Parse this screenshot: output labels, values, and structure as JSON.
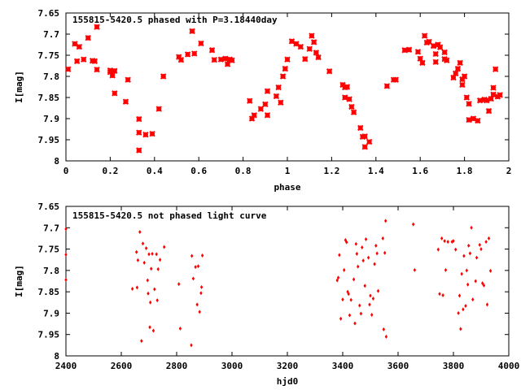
{
  "chart_data": [
    {
      "type": "scatter",
      "title": "155815-5420.5 phased with P=3.18440day",
      "xlabel": "phase",
      "ylabel": "I[mag]",
      "xlim": [
        0,
        2
      ],
      "ylim": [
        7.65,
        8.0
      ],
      "y_reversed": true,
      "xticks": [
        "0",
        "0.2",
        "0.4",
        "0.6",
        "0.8",
        "1",
        "1.2",
        "1.4",
        "1.6",
        "1.8",
        "2"
      ],
      "yticks": [
        "7.65",
        "7.7",
        "7.75",
        "7.8",
        "7.85",
        "7.9",
        "7.95",
        "8"
      ],
      "grid": false,
      "marker": "cross",
      "color": "#ff0000",
      "points": [
        [
          0.01,
          7.783
        ],
        [
          0.04,
          7.723
        ],
        [
          0.05,
          7.764
        ],
        [
          0.06,
          7.73
        ],
        [
          0.08,
          7.76
        ],
        [
          0.1,
          7.709
        ],
        [
          0.12,
          7.763
        ],
        [
          0.13,
          7.764
        ],
        [
          0.14,
          7.683
        ],
        [
          0.14,
          7.784
        ],
        [
          0.2,
          7.79
        ],
        [
          0.2,
          7.786
        ],
        [
          0.21,
          7.798
        ],
        [
          0.22,
          7.787
        ],
        [
          0.22,
          7.84
        ],
        [
          0.27,
          7.86
        ],
        [
          0.28,
          7.808
        ],
        [
          0.33,
          7.901
        ],
        [
          0.33,
          7.933
        ],
        [
          0.33,
          7.975
        ],
        [
          0.36,
          7.938
        ],
        [
          0.39,
          7.936
        ],
        [
          0.42,
          7.877
        ],
        [
          0.44,
          7.8
        ],
        [
          0.51,
          7.754
        ],
        [
          0.52,
          7.761
        ],
        [
          0.55,
          7.748
        ],
        [
          0.57,
          7.693
        ],
        [
          0.58,
          7.746
        ],
        [
          0.61,
          7.722
        ],
        [
          0.66,
          7.738
        ],
        [
          0.67,
          7.761
        ],
        [
          0.7,
          7.76
        ],
        [
          0.72,
          7.758
        ],
        [
          0.73,
          7.771
        ],
        [
          0.74,
          7.76
        ],
        [
          0.75,
          7.762
        ],
        [
          0.83,
          7.858
        ],
        [
          0.84,
          7.9
        ],
        [
          0.85,
          7.892
        ],
        [
          0.88,
          7.877
        ],
        [
          0.9,
          7.866
        ],
        [
          0.91,
          7.892
        ],
        [
          0.91,
          7.835
        ],
        [
          0.95,
          7.847
        ],
        [
          0.96,
          7.826
        ],
        [
          0.97,
          7.862
        ],
        [
          0.98,
          7.8
        ],
        [
          0.99,
          7.782
        ],
        [
          1.0,
          7.76
        ],
        [
          1.02,
          7.717
        ],
        [
          1.04,
          7.723
        ],
        [
          1.06,
          7.73
        ],
        [
          1.08,
          7.759
        ],
        [
          1.1,
          7.735
        ],
        [
          1.11,
          7.704
        ],
        [
          1.12,
          7.719
        ],
        [
          1.13,
          7.744
        ],
        [
          1.14,
          7.755
        ],
        [
          1.19,
          7.788
        ],
        [
          1.25,
          7.82
        ],
        [
          1.26,
          7.826
        ],
        [
          1.26,
          7.85
        ],
        [
          1.27,
          7.825
        ],
        [
          1.28,
          7.854
        ],
        [
          1.29,
          7.872
        ],
        [
          1.3,
          7.885
        ],
        [
          1.33,
          7.922
        ],
        [
          1.34,
          7.943
        ],
        [
          1.35,
          7.967
        ],
        [
          1.35,
          7.942
        ],
        [
          1.37,
          7.955
        ],
        [
          1.45,
          7.823
        ],
        [
          1.48,
          7.808
        ],
        [
          1.49,
          7.808
        ],
        [
          1.53,
          7.738
        ],
        [
          1.55,
          7.737
        ],
        [
          1.59,
          7.742
        ],
        [
          1.6,
          7.758
        ],
        [
          1.61,
          7.768
        ],
        [
          1.62,
          7.704
        ],
        [
          1.63,
          7.72
        ],
        [
          1.64,
          7.718
        ],
        [
          1.66,
          7.728
        ],
        [
          1.67,
          7.747
        ],
        [
          1.67,
          7.766
        ],
        [
          1.68,
          7.725
        ],
        [
          1.69,
          7.731
        ],
        [
          1.71,
          7.743
        ],
        [
          1.71,
          7.759
        ],
        [
          1.72,
          7.762
        ],
        [
          1.75,
          7.803
        ],
        [
          1.76,
          7.793
        ],
        [
          1.77,
          7.782
        ],
        [
          1.78,
          7.768
        ],
        [
          1.79,
          7.82
        ],
        [
          1.79,
          7.807
        ],
        [
          1.8,
          7.8
        ],
        [
          1.81,
          7.85
        ],
        [
          1.82,
          7.865
        ],
        [
          1.82,
          7.903
        ],
        [
          1.84,
          7.9
        ],
        [
          1.86,
          7.905
        ],
        [
          1.87,
          7.857
        ],
        [
          1.89,
          7.855
        ],
        [
          1.9,
          7.857
        ],
        [
          1.91,
          7.882
        ],
        [
          1.92,
          7.853
        ],
        [
          1.93,
          7.827
        ],
        [
          1.93,
          7.843
        ],
        [
          1.94,
          7.783
        ],
        [
          1.95,
          7.848
        ],
        [
          1.96,
          7.844
        ]
      ]
    },
    {
      "type": "scatter",
      "title": "155815-5420.5 not phased light curve",
      "xlabel": "hjd0",
      "ylabel": "I[mag]",
      "xlim": [
        2400,
        4000
      ],
      "ylim": [
        7.65,
        8.0
      ],
      "y_reversed": true,
      "xticks": [
        "2400",
        "2600",
        "2800",
        "3000",
        "3200",
        "3400",
        "3600",
        "3800",
        "4000"
      ],
      "yticks": [
        "7.65",
        "7.7",
        "7.75",
        "7.8",
        "7.85",
        "7.9",
        "7.95",
        "8"
      ],
      "grid": false,
      "marker": "dot",
      "color": "#ff0000",
      "points": [
        [
          2400,
          7.703
        ],
        [
          2400,
          7.763
        ],
        [
          2400,
          7.822
        ],
        [
          2640,
          7.843
        ],
        [
          2655,
          7.757
        ],
        [
          2657,
          7.84
        ],
        [
          2660,
          7.776
        ],
        [
          2667,
          7.71
        ],
        [
          2673,
          7.965
        ],
        [
          2678,
          7.737
        ],
        [
          2683,
          7.782
        ],
        [
          2690,
          7.748
        ],
        [
          2695,
          7.823
        ],
        [
          2697,
          7.854
        ],
        [
          2700,
          7.762
        ],
        [
          2703,
          7.933
        ],
        [
          2705,
          7.875
        ],
        [
          2708,
          7.796
        ],
        [
          2712,
          7.761
        ],
        [
          2716,
          7.941
        ],
        [
          2720,
          7.844
        ],
        [
          2727,
          7.762
        ],
        [
          2730,
          7.87
        ],
        [
          2733,
          7.797
        ],
        [
          2740,
          7.775
        ],
        [
          2755,
          7.745
        ],
        [
          2808,
          7.832
        ],
        [
          2813,
          7.936
        ],
        [
          2853,
          7.975
        ],
        [
          2855,
          7.766
        ],
        [
          2860,
          7.819
        ],
        [
          2868,
          7.792
        ],
        [
          2874,
          7.88
        ],
        [
          2878,
          7.79
        ],
        [
          2883,
          7.897
        ],
        [
          2888,
          7.853
        ],
        [
          2890,
          7.839
        ],
        [
          2893,
          7.765
        ],
        [
          3380,
          7.823
        ],
        [
          3384,
          7.817
        ],
        [
          3388,
          7.764
        ],
        [
          3393,
          7.913
        ],
        [
          3400,
          7.868
        ],
        [
          3405,
          7.799
        ],
        [
          3410,
          7.729
        ],
        [
          3414,
          7.734
        ],
        [
          3418,
          7.85
        ],
        [
          3421,
          7.855
        ],
        [
          3425,
          7.905
        ],
        [
          3430,
          7.869
        ],
        [
          3440,
          7.821
        ],
        [
          3444,
          7.924
        ],
        [
          3448,
          7.738
        ],
        [
          3451,
          7.761
        ],
        [
          3455,
          7.791
        ],
        [
          3461,
          7.882
        ],
        [
          3466,
          7.901
        ],
        [
          3470,
          7.746
        ],
        [
          3474,
          7.777
        ],
        [
          3480,
          7.836
        ],
        [
          3484,
          7.727
        ],
        [
          3493,
          7.77
        ],
        [
          3497,
          7.88
        ],
        [
          3500,
          7.859
        ],
        [
          3505,
          7.904
        ],
        [
          3510,
          7.866
        ],
        [
          3515,
          7.785
        ],
        [
          3520,
          7.742
        ],
        [
          3524,
          7.76
        ],
        [
          3528,
          7.848
        ],
        [
          3545,
          7.725
        ],
        [
          3548,
          7.938
        ],
        [
          3552,
          7.759
        ],
        [
          3557,
          7.955
        ],
        [
          3555,
          7.684
        ],
        [
          3655,
          7.692
        ],
        [
          3660,
          7.799
        ],
        [
          3745,
          7.751
        ],
        [
          3750,
          7.855
        ],
        [
          3758,
          7.725
        ],
        [
          3762,
          7.858
        ],
        [
          3768,
          7.731
        ],
        [
          3772,
          7.799
        ],
        [
          3780,
          7.733
        ],
        [
          3795,
          7.733
        ],
        [
          3800,
          7.731
        ],
        [
          3808,
          7.751
        ],
        [
          3818,
          7.9
        ],
        [
          3822,
          7.859
        ],
        [
          3826,
          7.937
        ],
        [
          3830,
          7.808
        ],
        [
          3835,
          7.891
        ],
        [
          3838,
          7.766
        ],
        [
          3844,
          7.883
        ],
        [
          3848,
          7.8
        ],
        [
          3852,
          7.833
        ],
        [
          3855,
          7.742
        ],
        [
          3860,
          7.76
        ],
        [
          3865,
          7.7
        ],
        [
          3870,
          7.868
        ],
        [
          3880,
          7.825
        ],
        [
          3884,
          7.77
        ],
        [
          3895,
          7.74
        ],
        [
          3900,
          7.75
        ],
        [
          3905,
          7.83
        ],
        [
          3910,
          7.835
        ],
        [
          3918,
          7.733
        ],
        [
          3922,
          7.88
        ],
        [
          3928,
          7.725
        ],
        [
          3934,
          7.801
        ]
      ]
    }
  ]
}
